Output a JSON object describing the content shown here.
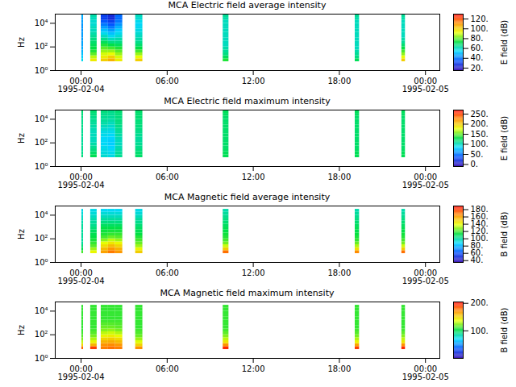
{
  "chart_data": [
    {
      "type": "heatmap",
      "title": "MCA  Electric field average intensity",
      "ylabel": "Hz",
      "log": "y",
      "xlim": [
        "1995-02-03T22:12Z",
        "1995-02-05T01:00Z"
      ],
      "xticks": [
        {
          "value": "1995-02-04T00:00Z",
          "label": "00:00\n1995-02-04"
        },
        {
          "value": "1995-02-04T06:00Z",
          "label": "06:00"
        },
        {
          "value": "1995-02-04T12:00Z",
          "label": "12:00"
        },
        {
          "value": "1995-02-04T18:00Z",
          "label": "18:00"
        },
        {
          "value": "1995-02-05T00:00Z",
          "label": "00:00\n1995-02-05"
        }
      ],
      "ylim": [
        1,
        60000
      ],
      "yticks": [
        {
          "value": 1,
          "label": "10⁰"
        },
        {
          "value": 100,
          "label": "10²"
        },
        {
          "value": 10000,
          "label": "10⁴"
        }
      ],
      "time_bins": [
        [
          "1995-02-04T00:03Z",
          "1995-02-04T00:10Z"
        ],
        [
          "1995-02-04T00:40Z",
          "1995-02-04T01:07Z"
        ],
        [
          "1995-02-04T01:24Z",
          "1995-02-04T01:54Z"
        ],
        [
          "1995-02-04T01:54Z",
          "1995-02-04T02:24Z"
        ],
        [
          "1995-02-04T02:24Z",
          "1995-02-04T02:54Z"
        ],
        [
          "1995-02-04T03:48Z",
          "1995-02-04T04:18Z"
        ],
        [
          "1995-02-04T09:54Z",
          "1995-02-04T10:18Z"
        ],
        [
          "1995-02-04T19:06Z",
          "1995-02-04T19:24Z"
        ],
        [
          "1995-02-04T22:21Z",
          "1995-02-04T22:36Z"
        ]
      ],
      "freq_bins": [
        5.6,
        10,
        17.8,
        31.6,
        56.2,
        100,
        178,
        316,
        562,
        1000,
        1780,
        3160,
        5620,
        10000,
        17800,
        31600,
        56200
      ],
      "cells": [
        [
          55,
          52,
          50,
          48,
          47,
          46,
          46,
          45,
          45,
          45,
          44,
          44,
          44,
          45,
          46,
          48
        ],
        [
          95,
          88,
          80,
          75,
          72,
          70,
          68,
          66,
          64,
          62,
          60,
          60,
          58,
          58,
          60,
          62
        ],
        [
          100,
          95,
          90,
          85,
          80,
          75,
          70,
          65,
          60,
          55,
          50,
          45,
          40,
          35,
          30,
          30
        ],
        [
          105,
          100,
          92,
          85,
          78,
          72,
          66,
          60,
          55,
          50,
          45,
          40,
          35,
          30,
          25,
          25
        ],
        [
          95,
          90,
          85,
          80,
          75,
          70,
          66,
          62,
          58,
          55,
          52,
          48,
          44,
          40,
          38,
          38
        ],
        [
          100,
          92,
          85,
          78,
          72,
          68,
          65,
          62,
          60,
          58,
          56,
          55,
          54,
          55,
          58,
          60
        ],
        [
          75,
          70,
          66,
          64,
          62,
          60,
          60,
          60,
          60,
          60,
          60,
          60,
          60,
          60,
          62,
          64
        ],
        [
          70,
          66,
          64,
          62,
          60,
          60,
          60,
          60,
          60,
          60,
          60,
          60,
          60,
          60,
          62,
          64
        ],
        [
          100,
          92,
          84,
          78,
          72,
          68,
          64,
          62,
          60,
          60,
          60,
          60,
          60,
          60,
          62,
          64
        ]
      ],
      "colorbar": {
        "label": "E field (dB)",
        "range": [
          15,
          130
        ],
        "ticks": [
          {
            "value": 20,
            "label": "20."
          },
          {
            "value": 40,
            "label": "40."
          },
          {
            "value": 60,
            "label": "60."
          },
          {
            "value": 80,
            "label": "80."
          },
          {
            "value": 100,
            "label": "100."
          },
          {
            "value": 120,
            "label": "120."
          }
        ]
      }
    },
    {
      "type": "heatmap",
      "title": "MCA  Electric field maximum intensity",
      "ylabel": "Hz",
      "log": "y",
      "xlim": [
        "1995-02-03T22:12Z",
        "1995-02-05T01:00Z"
      ],
      "xticks": [
        {
          "value": "1995-02-04T00:00Z",
          "label": "00:00\n1995-02-04"
        },
        {
          "value": "1995-02-04T06:00Z",
          "label": "06:00"
        },
        {
          "value": "1995-02-04T12:00Z",
          "label": "12:00"
        },
        {
          "value": "1995-02-04T18:00Z",
          "label": "18:00"
        },
        {
          "value": "1995-02-05T00:00Z",
          "label": "00:00\n1995-02-05"
        }
      ],
      "ylim": [
        1,
        60000
      ],
      "yticks": [
        {
          "value": 1,
          "label": "10⁰"
        },
        {
          "value": 100,
          "label": "10²"
        },
        {
          "value": 10000,
          "label": "10⁴"
        }
      ],
      "time_bins": [
        [
          "1995-02-04T00:03Z",
          "1995-02-04T00:10Z"
        ],
        [
          "1995-02-04T00:40Z",
          "1995-02-04T01:07Z"
        ],
        [
          "1995-02-04T01:24Z",
          "1995-02-04T01:54Z"
        ],
        [
          "1995-02-04T01:54Z",
          "1995-02-04T02:24Z"
        ],
        [
          "1995-02-04T02:24Z",
          "1995-02-04T02:54Z"
        ],
        [
          "1995-02-04T03:48Z",
          "1995-02-04T04:18Z"
        ],
        [
          "1995-02-04T09:54Z",
          "1995-02-04T10:18Z"
        ],
        [
          "1995-02-04T19:06Z",
          "1995-02-04T19:24Z"
        ],
        [
          "1995-02-04T22:21Z",
          "1995-02-04T22:36Z"
        ]
      ],
      "freq_bins": [
        5.6,
        10,
        17.8,
        31.6,
        56.2,
        100,
        178,
        316,
        562,
        1000,
        1780,
        3160,
        5620,
        10000,
        17800,
        31600,
        56200
      ],
      "cells": [
        [
          115,
          112,
          110,
          110,
          108,
          108,
          108,
          110,
          110,
          110,
          112,
          112,
          112,
          114,
          115,
          118
        ],
        [
          125,
          120,
          115,
          110,
          105,
          100,
          100,
          100,
          100,
          102,
          105,
          108,
          110,
          112,
          115,
          118
        ],
        [
          95,
          92,
          90,
          88,
          85,
          85,
          85,
          88,
          90,
          95,
          100,
          105,
          108,
          110,
          112,
          115
        ],
        [
          90,
          88,
          85,
          82,
          80,
          80,
          82,
          85,
          88,
          92,
          96,
          100,
          105,
          108,
          110,
          112
        ],
        [
          110,
          108,
          105,
          102,
          100,
          100,
          102,
          105,
          108,
          110,
          112,
          114,
          115,
          115,
          116,
          118
        ],
        [
          120,
          118,
          115,
          112,
          110,
          108,
          108,
          110,
          112,
          114,
          115,
          116,
          116,
          118,
          118,
          120
        ],
        [
          125,
          124,
          122,
          120,
          120,
          120,
          120,
          120,
          120,
          120,
          120,
          120,
          120,
          120,
          122,
          124
        ],
        [
          125,
          124,
          122,
          120,
          120,
          120,
          120,
          120,
          120,
          120,
          120,
          120,
          120,
          120,
          122,
          124
        ],
        [
          125,
          124,
          122,
          120,
          120,
          120,
          120,
          120,
          120,
          120,
          120,
          120,
          120,
          120,
          122,
          124
        ]
      ],
      "colorbar": {
        "label": "E field (dB)",
        "range": [
          -10,
          270
        ],
        "ticks": [
          {
            "value": 0,
            "label": "0."
          },
          {
            "value": 50,
            "label": "50."
          },
          {
            "value": 100,
            "label": "100."
          },
          {
            "value": 150,
            "label": "150."
          },
          {
            "value": 200,
            "label": "200."
          },
          {
            "value": 250,
            "label": "250."
          }
        ]
      }
    },
    {
      "type": "heatmap",
      "title": "MCA  Magnetic field average intensity",
      "ylabel": "Hz",
      "log": "y",
      "xlim": [
        "1995-02-03T22:12Z",
        "1995-02-05T01:00Z"
      ],
      "xticks": [
        {
          "value": "1995-02-04T00:00Z",
          "label": "00:00\n1995-02-04"
        },
        {
          "value": "1995-02-04T06:00Z",
          "label": "06:00"
        },
        {
          "value": "1995-02-04T12:00Z",
          "label": "12:00"
        },
        {
          "value": "1995-02-04T18:00Z",
          "label": "18:00"
        },
        {
          "value": "1995-02-05T00:00Z",
          "label": "00:00\n1995-02-05"
        }
      ],
      "ylim": [
        1,
        60000
      ],
      "yticks": [
        {
          "value": 1,
          "label": "10⁰"
        },
        {
          "value": 100,
          "label": "10²"
        },
        {
          "value": 10000,
          "label": "10⁴"
        }
      ],
      "time_bins": [
        [
          "1995-02-04T00:03Z",
          "1995-02-04T00:10Z"
        ],
        [
          "1995-02-04T00:40Z",
          "1995-02-04T01:07Z"
        ],
        [
          "1995-02-04T01:24Z",
          "1995-02-04T01:54Z"
        ],
        [
          "1995-02-04T01:54Z",
          "1995-02-04T02:24Z"
        ],
        [
          "1995-02-04T02:24Z",
          "1995-02-04T02:54Z"
        ],
        [
          "1995-02-04T03:48Z",
          "1995-02-04T04:18Z"
        ],
        [
          "1995-02-04T09:54Z",
          "1995-02-04T10:18Z"
        ],
        [
          "1995-02-04T19:06Z",
          "1995-02-04T19:24Z"
        ],
        [
          "1995-02-04T22:21Z",
          "1995-02-04T22:36Z"
        ]
      ],
      "freq_bins": [
        5.6,
        10,
        17.8,
        31.6,
        56.2,
        100,
        178,
        316,
        562,
        1000,
        1780,
        3160,
        5620,
        10000,
        17800,
        31600,
        56200
      ],
      "cells": [
        [
          120,
          110,
          105,
          100,
          100,
          100,
          100,
          100,
          100,
          100,
          98,
          96,
          94,
          92,
          90,
          null
        ],
        [
          140,
          130,
          122,
          118,
          115,
          112,
          110,
          108,
          105,
          102,
          100,
          98,
          95,
          92,
          90,
          null
        ],
        [
          160,
          154,
          146,
          138,
          128,
          120,
          116,
          114,
          112,
          108,
          104,
          100,
          96,
          92,
          88,
          null
        ],
        [
          168,
          162,
          154,
          144,
          134,
          124,
          118,
          115,
          112,
          108,
          104,
          100,
          96,
          92,
          88,
          null
        ],
        [
          162,
          156,
          148,
          140,
          130,
          122,
          118,
          115,
          112,
          108,
          104,
          100,
          96,
          92,
          88,
          null
        ],
        [
          150,
          140,
          130,
          124,
          120,
          116,
          112,
          110,
          108,
          105,
          102,
          100,
          96,
          92,
          90,
          null
        ],
        [
          170,
          150,
          135,
          125,
          120,
          116,
          114,
          112,
          110,
          108,
          106,
          104,
          102,
          100,
          98,
          null
        ],
        [
          165,
          145,
          132,
          124,
          118,
          115,
          113,
          111,
          110,
          108,
          106,
          104,
          102,
          100,
          98,
          null
        ],
        [
          170,
          150,
          135,
          125,
          120,
          116,
          114,
          112,
          110,
          108,
          106,
          104,
          102,
          100,
          98,
          null
        ]
      ],
      "colorbar": {
        "label": "B field (dB)",
        "range": [
          35,
          190
        ],
        "ticks": [
          {
            "value": 40,
            "label": "40."
          },
          {
            "value": 60,
            "label": "60."
          },
          {
            "value": 80,
            "label": "80."
          },
          {
            "value": 100,
            "label": "100."
          },
          {
            "value": 120,
            "label": "120."
          },
          {
            "value": 140,
            "label": "140."
          },
          {
            "value": 160,
            "label": "160."
          },
          {
            "value": 180,
            "label": "180."
          }
        ]
      }
    },
    {
      "type": "heatmap",
      "title": "MCA  Magnetic field maximum intensity",
      "ylabel": "Hz",
      "log": "y",
      "xlim": [
        "1995-02-03T22:12Z",
        "1995-02-05T01:00Z"
      ],
      "xticks": [
        {
          "value": "1995-02-04T00:00Z",
          "label": "00:00\n1995-02-04"
        },
        {
          "value": "1995-02-04T06:00Z",
          "label": "06:00"
        },
        {
          "value": "1995-02-04T12:00Z",
          "label": "12:00"
        },
        {
          "value": "1995-02-04T18:00Z",
          "label": "18:00"
        },
        {
          "value": "1995-02-05T00:00Z",
          "label": "00:00\n1995-02-05"
        }
      ],
      "ylim": [
        1,
        60000
      ],
      "yticks": [
        {
          "value": 1,
          "label": "10⁰"
        },
        {
          "value": 100,
          "label": "10²"
        },
        {
          "value": 10000,
          "label": "10⁴"
        }
      ],
      "time_bins": [
        [
          "1995-02-04T00:03Z",
          "1995-02-04T00:10Z"
        ],
        [
          "1995-02-04T00:40Z",
          "1995-02-04T01:07Z"
        ],
        [
          "1995-02-04T01:24Z",
          "1995-02-04T01:54Z"
        ],
        [
          "1995-02-04T01:54Z",
          "1995-02-04T02:24Z"
        ],
        [
          "1995-02-04T02:24Z",
          "1995-02-04T02:54Z"
        ],
        [
          "1995-02-04T03:48Z",
          "1995-02-04T04:18Z"
        ],
        [
          "1995-02-04T09:54Z",
          "1995-02-04T10:18Z"
        ],
        [
          "1995-02-04T19:06Z",
          "1995-02-04T19:24Z"
        ],
        [
          "1995-02-04T22:21Z",
          "1995-02-04T22:36Z"
        ]
      ],
      "freq_bins": [
        5.6,
        10,
        17.8,
        31.6,
        56.2,
        100,
        178,
        316,
        562,
        1000,
        1780,
        3160,
        5620,
        10000,
        17800,
        31600,
        56200
      ],
      "cells": [
        [
          180,
          150,
          130,
          120,
          115,
          112,
          110,
          110,
          110,
          110,
          110,
          110,
          110,
          110,
          110,
          null
        ],
        [
          190,
          160,
          140,
          128,
          120,
          115,
          112,
          110,
          110,
          110,
          110,
          110,
          110,
          110,
          110,
          null
        ],
        [
          175,
          170,
          160,
          150,
          140,
          130,
          122,
          118,
          115,
          112,
          110,
          110,
          110,
          110,
          110,
          null
        ],
        [
          178,
          172,
          162,
          152,
          142,
          132,
          124,
          118,
          115,
          112,
          110,
          110,
          110,
          110,
          110,
          null
        ],
        [
          175,
          168,
          158,
          148,
          138,
          128,
          120,
          116,
          114,
          112,
          110,
          110,
          110,
          110,
          110,
          null
        ],
        [
          170,
          150,
          135,
          125,
          118,
          114,
          112,
          110,
          110,
          110,
          110,
          110,
          110,
          110,
          110,
          null
        ],
        [
          195,
          170,
          145,
          130,
          122,
          116,
          112,
          110,
          110,
          110,
          110,
          110,
          110,
          110,
          110,
          null
        ],
        [
          190,
          165,
          140,
          128,
          120,
          115,
          112,
          110,
          110,
          110,
          110,
          110,
          110,
          110,
          110,
          null
        ],
        [
          195,
          170,
          145,
          130,
          122,
          116,
          112,
          110,
          110,
          110,
          110,
          110,
          110,
          110,
          110,
          null
        ]
      ],
      "colorbar": {
        "label": "B field (dB)",
        "range": [
          0,
          205
        ],
        "ticks": [
          {
            "value": 100,
            "label": "100."
          },
          {
            "value": 200,
            "label": "200."
          }
        ]
      }
    }
  ]
}
